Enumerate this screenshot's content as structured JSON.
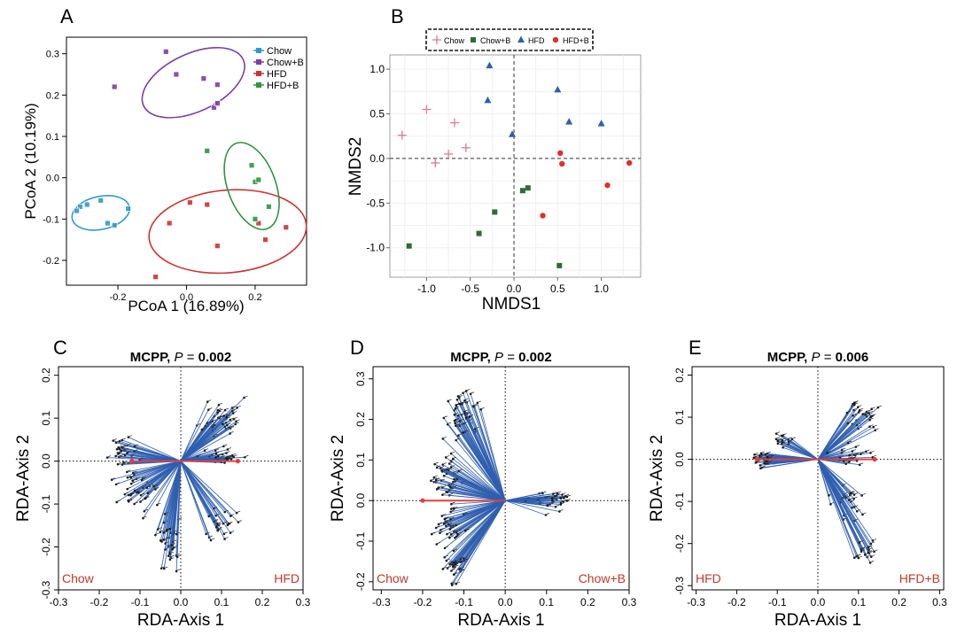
{
  "figure": {
    "panel_labels": [
      "A",
      "B",
      "C",
      "D",
      "E"
    ],
    "colors": {
      "chow": "#3399cc",
      "chowb": "#7a3fa6",
      "hfd": "#cc3333",
      "hfdb": "#2e9442",
      "nm_chow": "#e07a8a",
      "nm_chowb": "#2f6b35",
      "nm_hfd": "#2f5faf",
      "nm_hfdb": "#e0302a",
      "arrow_blue": "#2f5faf",
      "arrow_red": "#e04040",
      "corner_label": "#c0392b"
    }
  },
  "chart_data": [
    {
      "panel": "A",
      "type": "scatter",
      "title": "",
      "xlabel": "PCoA 1 (16.89%)",
      "ylabel": "PCoA 2 (10.19%)",
      "xlim": [
        -0.35,
        0.35
      ],
      "ylim": [
        -0.26,
        0.34
      ],
      "xticks": [
        -0.2,
        0.0,
        0.2
      ],
      "xtick_labels": [
        "-0.2",
        "0.0",
        "0.2"
      ],
      "yticks": [
        -0.2,
        -0.1,
        0.0,
        0.1,
        0.2,
        0.3
      ],
      "ytick_labels": [
        "-0.2",
        "-0.1",
        "0.0",
        "0.1",
        "0.2",
        "0.3"
      ],
      "legend": [
        "Chow",
        "Chow+B",
        "HFD",
        "HFD+B"
      ],
      "series": [
        {
          "name": "Chow",
          "color_key": "chow",
          "points": [
            [
              -0.31,
              -0.07
            ],
            [
              -0.29,
              -0.065
            ],
            [
              -0.25,
              -0.055
            ],
            [
              -0.23,
              -0.11
            ],
            [
              -0.21,
              -0.115
            ],
            [
              -0.17,
              -0.075
            ],
            [
              -0.32,
              -0.08
            ]
          ],
          "ellipse": {
            "cx": -0.25,
            "cy": -0.085,
            "rx": 0.085,
            "ry": 0.04,
            "angle": -12
          }
        },
        {
          "name": "Chow+B",
          "color_key": "chowb",
          "points": [
            [
              -0.21,
              0.22
            ],
            [
              -0.06,
              0.305
            ],
            [
              -0.03,
              0.25
            ],
            [
              0.05,
              0.24
            ],
            [
              0.09,
              0.225
            ],
            [
              0.08,
              0.17
            ],
            [
              0.09,
              0.18
            ]
          ],
          "ellipse": {
            "cx": 0.02,
            "cy": 0.23,
            "rx": 0.16,
            "ry": 0.07,
            "angle": -25
          }
        },
        {
          "name": "HFD",
          "color_key": "hfd",
          "points": [
            [
              -0.09,
              -0.24
            ],
            [
              -0.05,
              -0.11
            ],
            [
              0.01,
              -0.06
            ],
            [
              0.06,
              -0.065
            ],
            [
              0.09,
              -0.165
            ],
            [
              0.21,
              -0.11
            ],
            [
              0.29,
              -0.12
            ],
            [
              0.23,
              -0.15
            ]
          ],
          "ellipse": {
            "cx": 0.12,
            "cy": -0.13,
            "rx": 0.23,
            "ry": 0.1,
            "angle": -5
          }
        },
        {
          "name": "HFD+B",
          "color_key": "hfdb",
          "points": [
            [
              0.06,
              0.065
            ],
            [
              0.19,
              0.03
            ],
            [
              0.2,
              -0.01
            ],
            [
              0.21,
              -0.005
            ],
            [
              0.24,
              -0.07
            ],
            [
              0.2,
              -0.1
            ]
          ],
          "ellipse": {
            "cx": 0.19,
            "cy": -0.02,
            "rx": 0.07,
            "ry": 0.11,
            "angle": -20
          }
        }
      ]
    },
    {
      "panel": "B",
      "type": "scatter",
      "title": "",
      "xlabel": "NMDS1",
      "ylabel": "NMDS2",
      "xlim": [
        -1.42,
        1.45
      ],
      "ylim": [
        -1.33,
        1.16
      ],
      "xticks": [
        -1.0,
        -0.5,
        0.0,
        0.5,
        1.0
      ],
      "xtick_labels": [
        "-1.0",
        "-0.5",
        "0.0",
        "0.5",
        "1.0"
      ],
      "yticks": [
        -1.0,
        -0.5,
        0.0,
        0.5,
        1.0
      ],
      "ytick_labels": [
        "-1.0",
        "-0.5",
        "0.0",
        "0.5",
        "1.0"
      ],
      "legend": [
        "Chow",
        "Chow+B",
        "HFD",
        "HFD+B"
      ],
      "series": [
        {
          "name": "Chow",
          "marker": "plus",
          "color_key": "nm_chow",
          "points": [
            [
              -1.28,
              0.26
            ],
            [
              -1.0,
              0.55
            ],
            [
              -0.68,
              0.4
            ],
            [
              -0.55,
              0.12
            ],
            [
              -0.75,
              0.05
            ],
            [
              -0.9,
              -0.05
            ]
          ]
        },
        {
          "name": "Chow+B",
          "marker": "square",
          "color_key": "nm_chowb",
          "points": [
            [
              -1.2,
              -0.98
            ],
            [
              -0.22,
              -0.6
            ],
            [
              -0.4,
              -0.84
            ],
            [
              0.1,
              -0.36
            ],
            [
              0.16,
              -0.33
            ],
            [
              0.52,
              -1.2
            ]
          ]
        },
        {
          "name": "HFD",
          "marker": "triangle",
          "color_key": "nm_hfd",
          "points": [
            [
              -0.28,
              1.04
            ],
            [
              -0.3,
              0.65
            ],
            [
              -0.02,
              0.27
            ],
            [
              0.5,
              0.77
            ],
            [
              0.63,
              0.41
            ],
            [
              1.0,
              0.39
            ]
          ]
        },
        {
          "name": "HFD+B",
          "marker": "circle",
          "color_key": "nm_hfdb",
          "points": [
            [
              0.53,
              0.06
            ],
            [
              0.55,
              -0.06
            ],
            [
              0.33,
              -0.64
            ],
            [
              1.07,
              -0.3
            ],
            [
              1.32,
              -0.05
            ]
          ]
        }
      ]
    },
    {
      "panel": "C",
      "type": "scatter",
      "title": "MCPP, ",
      "title_p": "P",
      "title_eq": " = ",
      "title_value": "0.002",
      "xlabel": "RDA-Axis 1",
      "ylabel": "RDA-Axis 2",
      "xlim": [
        -0.3,
        0.3
      ],
      "ylim": [
        -0.3,
        0.22
      ],
      "xticks": [
        -0.3,
        -0.2,
        -0.1,
        0.0,
        0.1,
        0.2,
        0.3
      ],
      "xtick_labels": [
        "-0.3",
        "-0.2",
        "-0.1",
        "0.0",
        "0.1",
        "0.2",
        "0.3"
      ],
      "yticks": [
        -0.3,
        -0.2,
        -0.1,
        0.0,
        0.1,
        0.2
      ],
      "ytick_labels": [
        "-0.3",
        "-0.2",
        "-0.1",
        "0.0",
        "0.1",
        "0.2"
      ],
      "corner_left": "Chow",
      "corner_right": "HFD",
      "red_arrows": [
        [
          0.14,
          0.0
        ],
        [
          -0.12,
          0.0
        ]
      ],
      "arrow_clusters": [
        {
          "cx": 0.1,
          "cy": 0.1,
          "sx": 0.04,
          "sy": 0.04,
          "n": 45
        },
        {
          "cx": 0.1,
          "cy": 0.01,
          "sx": 0.04,
          "sy": 0.015,
          "n": 30
        },
        {
          "cx": -0.14,
          "cy": 0.02,
          "sx": 0.03,
          "sy": 0.03,
          "n": 30
        },
        {
          "cx": -0.11,
          "cy": -0.07,
          "sx": 0.035,
          "sy": 0.05,
          "n": 40
        },
        {
          "cx": -0.03,
          "cy": -0.19,
          "sx": 0.03,
          "sy": 0.06,
          "n": 35
        },
        {
          "cx": 0.1,
          "cy": -0.14,
          "sx": 0.04,
          "sy": 0.03,
          "n": 25
        }
      ]
    },
    {
      "panel": "D",
      "type": "scatter",
      "title": "MCPP, ",
      "title_p": "P",
      "title_eq": " = ",
      "title_value": "0.002",
      "xlabel": "RDA-Axis 1",
      "ylabel": "RDA-Axis 2",
      "xlim": [
        -0.32,
        0.3
      ],
      "ylim": [
        -0.22,
        0.33
      ],
      "xticks": [
        -0.3,
        -0.2,
        -0.1,
        0.0,
        0.1,
        0.2,
        0.3
      ],
      "xtick_labels": [
        "-0.3",
        "-0.2",
        "-0.1",
        "0.0",
        "0.1",
        "0.2",
        "0.3"
      ],
      "yticks": [
        -0.2,
        -0.1,
        0.0,
        0.1,
        0.2,
        0.3
      ],
      "ytick_labels": [
        "-0.2",
        "-0.1",
        "0.0",
        "0.1",
        "0.2",
        "0.3"
      ],
      "corner_left": "Chow",
      "corner_right": "Chow+B",
      "red_arrows": [
        [
          -0.2,
          0.0
        ]
      ],
      "arrow_clusters": [
        {
          "cx": -0.1,
          "cy": 0.21,
          "sx": 0.03,
          "sy": 0.04,
          "n": 50
        },
        {
          "cx": -0.15,
          "cy": 0.06,
          "sx": 0.03,
          "sy": 0.05,
          "n": 45
        },
        {
          "cx": -0.14,
          "cy": -0.07,
          "sx": 0.03,
          "sy": 0.04,
          "n": 40
        },
        {
          "cx": -0.12,
          "cy": -0.16,
          "sx": 0.025,
          "sy": 0.03,
          "n": 30
        },
        {
          "cx": 0.11,
          "cy": 0.0,
          "sx": 0.04,
          "sy": 0.02,
          "n": 35
        }
      ]
    },
    {
      "panel": "E",
      "type": "scatter",
      "title": "MCPP, ",
      "title_p": "P",
      "title_eq": " = ",
      "title_value": "0.006",
      "xlabel": "RDA-Axis 1",
      "ylabel": "RDA-Axis 2",
      "xlim": [
        -0.31,
        0.31
      ],
      "ylim": [
        -0.31,
        0.22
      ],
      "xticks": [
        -0.3,
        -0.2,
        -0.1,
        0.0,
        0.1,
        0.2,
        0.3
      ],
      "xtick_labels": [
        "-0.3",
        "-0.2",
        "-0.1",
        "0.0",
        "0.1",
        "0.2",
        "0.3"
      ],
      "yticks": [
        -0.3,
        -0.2,
        -0.1,
        0.0,
        0.1,
        0.2
      ],
      "ytick_labels": [
        "-0.3",
        "-0.2",
        "-0.1",
        "0.0",
        "0.1",
        "0.2"
      ],
      "corner_left": "HFD",
      "corner_right": "HFD+B",
      "red_arrows": [
        [
          0.14,
          0.0
        ],
        [
          -0.15,
          0.0
        ]
      ],
      "arrow_clusters": [
        {
          "cx": 0.11,
          "cy": 0.1,
          "sx": 0.03,
          "sy": 0.03,
          "n": 30
        },
        {
          "cx": 0.08,
          "cy": 0.01,
          "sx": 0.04,
          "sy": 0.02,
          "n": 25
        },
        {
          "cx": -0.13,
          "cy": 0.0,
          "sx": 0.025,
          "sy": 0.015,
          "n": 35
        },
        {
          "cx": -0.09,
          "cy": 0.05,
          "sx": 0.025,
          "sy": 0.02,
          "n": 15
        },
        {
          "cx": 0.07,
          "cy": -0.1,
          "sx": 0.03,
          "sy": 0.04,
          "n": 25
        },
        {
          "cx": 0.11,
          "cy": -0.22,
          "sx": 0.02,
          "sy": 0.025,
          "n": 20
        }
      ]
    }
  ]
}
